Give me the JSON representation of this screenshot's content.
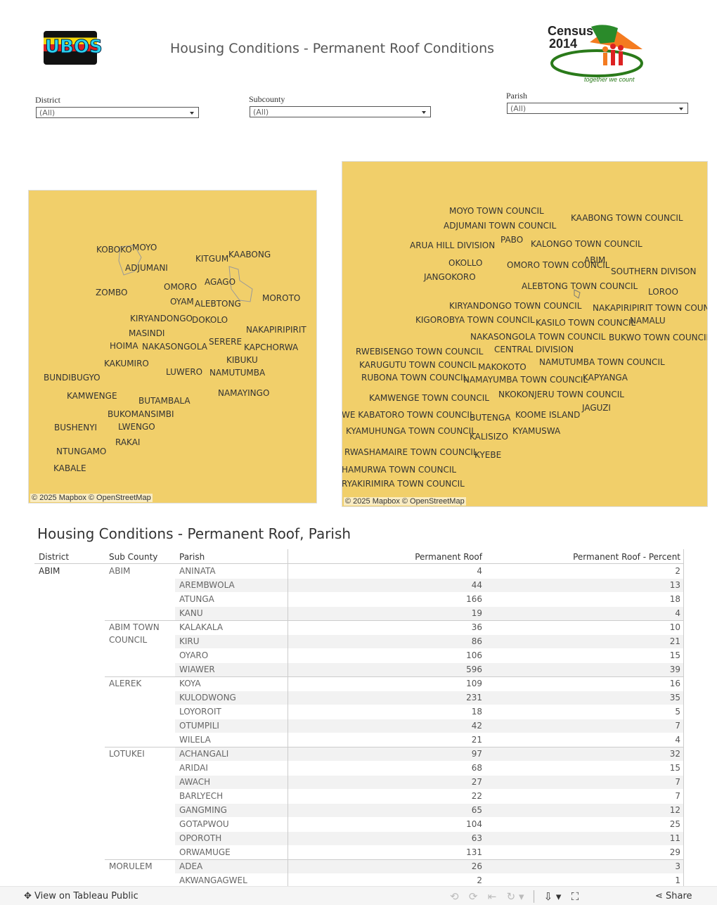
{
  "header": {
    "title": "Housing Conditions - Permanent Roof Conditions",
    "logo_left": "UBOS",
    "logo_right_line1": "Census",
    "logo_right_line2": "2014",
    "logo_right_tagline": "together we count"
  },
  "filters": [
    {
      "label": "District",
      "value": "(All)"
    },
    {
      "label": "Subcounty",
      "value": "(All)"
    },
    {
      "label": "Parish",
      "value": "(All)"
    }
  ],
  "map_district": {
    "labels": [
      "KOBOKO",
      "MOYO",
      "ADJUMANI",
      "KITGUM",
      "KAABONG",
      "ZOMBO",
      "OMORO",
      "AGAGO",
      "OYAM",
      "ALEBTONG",
      "MOROTO",
      "KIRYANDONGO",
      "DOKOLO",
      "MASINDI",
      "NAKAPIRIPIRIT",
      "HOIMA",
      "NAKASONGOLA",
      "SERERE",
      "KAPCHORWA",
      "KIBUKU",
      "KAKUMIRO",
      "LUWERO",
      "NAMUTUMBA",
      "BUNDIBUGYO",
      "KAMWENGE",
      "BUTAMBALA",
      "NAMAYINGO",
      "BUKOMANSIMBI",
      "BUSHENYI",
      "LWENGO",
      "RAKAI",
      "NTUNGAMO",
      "KABALE"
    ],
    "attribution": "© 2025 Mapbox  © OpenStreetMap"
  },
  "map_subcounty": {
    "labels": [
      "MOYO TOWN COUNCIL",
      "KAABONG TOWN COUNCIL",
      "ADJUMANI TOWN COUNCIL",
      "PABO",
      "ARUA HILL DIVISION",
      "KALONGO TOWN COUNCIL",
      "OKOLLO",
      "OMORO TOWN COUNCIL",
      "ABIM",
      "SOUTHERN DIVISON",
      "JANGOKORO",
      "ALEBTONG TOWN COUNCIL",
      "LOROO",
      "KIRYANDONGO TOWN COUNCIL",
      "NAKAPIRIPIRIT TOWN COUNC",
      "KIGOROBYA TOWN COUNCIL",
      "KASILO TOWN COUNCIL",
      "NAMALU",
      "NAKASONGOLA TOWN COUNCIL",
      "BUKWO TOWN COUNCIL",
      "CENTRAL DIVISION",
      "RWEBISENGO TOWN COUNCIL",
      "KARUGUTU TOWN COUNCIL",
      "MAKOKOTO",
      "NAMUTUMBA TOWN COUNCIL",
      "RUBONA TOWN COUNCIL",
      "NAMAYUMBA TOWN COUNCIL",
      "KAPYANGA",
      "KAMWENGE TOWN COUNCIL",
      "NKOKONJERU TOWN COUNCIL",
      "JAGUZI",
      "WE KABATORO TOWN COUNCIL",
      "BUTENGA",
      "KOOME ISLAND",
      "KYAMUHUNGA TOWN COUNCIL",
      "KALISIZO",
      "KYAMUSWA",
      "RWASHAMAIRE TOWN COUNCIL",
      "KYEBE",
      "HAMURWA TOWN COUNCIL",
      "RYAKIRIMIRA TOWN COUNCIL"
    ],
    "attribution": "© 2025 Mapbox  © OpenStreetMap"
  },
  "table": {
    "title": "Housing Conditions - Permanent Roof, Parish",
    "columns": [
      "District",
      "Sub County",
      "Parish",
      "Permanent Roof",
      "Permanent Roof - Percent"
    ],
    "districts": [
      {
        "name": "ABIM",
        "subcounties": [
          {
            "name": "ABIM",
            "parishes": [
              [
                "ANINATA",
                4,
                2
              ],
              [
                "AREMBWOLA",
                44,
                13
              ],
              [
                "ATUNGA",
                166,
                18
              ],
              [
                "KANU",
                19,
                4
              ]
            ]
          },
          {
            "name": "ABIM TOWN COUNCIL",
            "parishes": [
              [
                "KALAKALA",
                36,
                10
              ],
              [
                "KIRU",
                86,
                21
              ],
              [
                "OYARO",
                106,
                15
              ],
              [
                "WIAWER",
                596,
                39
              ]
            ]
          },
          {
            "name": "ALEREK",
            "parishes": [
              [
                "KOYA",
                109,
                16
              ],
              [
                "KULODWONG",
                231,
                35
              ],
              [
                "LOYOROIT",
                18,
                5
              ],
              [
                "OTUMPILI",
                42,
                7
              ],
              [
                "WILELA",
                21,
                4
              ]
            ]
          },
          {
            "name": "LOTUKEI",
            "parishes": [
              [
                "ACHANGALI",
                97,
                32
              ],
              [
                "ARIDAI",
                68,
                15
              ],
              [
                "AWACH",
                27,
                7
              ],
              [
                "BARLYECH",
                22,
                7
              ],
              [
                "GANGMING",
                65,
                12
              ],
              [
                "GOTAPWOU",
                104,
                25
              ],
              [
                "OPOROTH",
                63,
                11
              ],
              [
                "ORWAMUGE",
                131,
                29
              ]
            ]
          },
          {
            "name": "MORULEM",
            "parishes": [
              [
                "ADEA",
                26,
                3
              ],
              [
                "AKWANGAGWEL",
                2,
                1
              ]
            ]
          }
        ]
      }
    ]
  },
  "footer": {
    "link": "View on Tableau Public",
    "share": "Share"
  }
}
